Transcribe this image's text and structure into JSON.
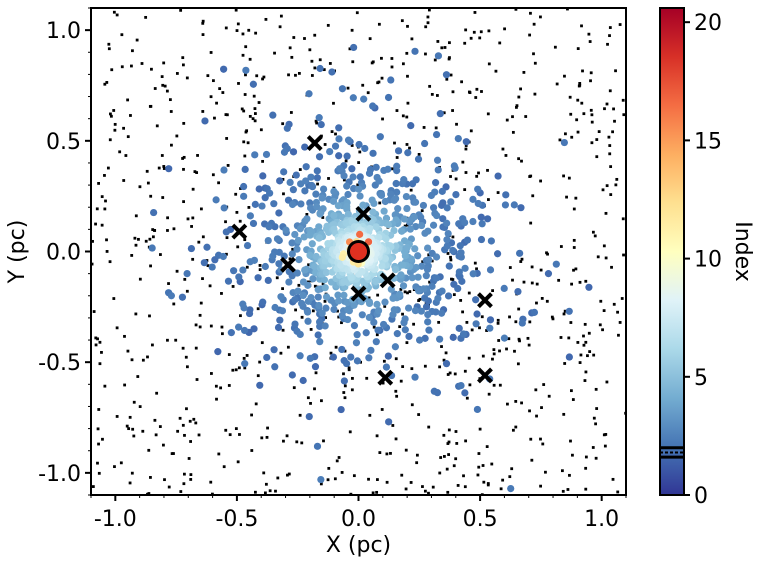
{
  "chart_data": {
    "type": "scatter",
    "xlabel": "X (pc)",
    "ylabel": "Y (pc)",
    "xlim": [
      -1.1,
      1.1
    ],
    "ylim": [
      -1.1,
      1.1
    ],
    "xticks": [
      -1.0,
      -0.5,
      0.0,
      0.5,
      1.0
    ],
    "xtick_labels": [
      "-1.0",
      "-0.5",
      "0.0",
      "0.5",
      "1.0"
    ],
    "yticks": [
      -1.0,
      -0.5,
      0.0,
      0.5,
      1.0
    ],
    "ytick_labels": [
      "-1.0",
      "-0.5",
      "0.0",
      "0.5",
      "1.0"
    ],
    "grid": false,
    "colorbar": {
      "label": "Index",
      "range": [
        0,
        20.6
      ],
      "ticks": [
        0,
        5,
        10,
        15,
        20
      ],
      "tick_labels": [
        "0",
        "5",
        "10",
        "15",
        "20"
      ],
      "colormap": "RdYlBu_r",
      "markers": [
        1.6,
        1.8,
        2.0
      ]
    },
    "field_points_note": "black dots, index < 1 (uniform background)",
    "crosses": [
      {
        "x": -0.18,
        "y": 0.49
      },
      {
        "x": 0.02,
        "y": 0.17
      },
      {
        "x": -0.49,
        "y": 0.09
      },
      {
        "x": -0.29,
        "y": -0.06
      },
      {
        "x": 0.0,
        "y": -0.19
      },
      {
        "x": 0.12,
        "y": -0.13
      },
      {
        "x": 0.52,
        "y": -0.22
      },
      {
        "x": 0.11,
        "y": -0.57
      },
      {
        "x": 0.52,
        "y": -0.56
      }
    ],
    "center_circle": {
      "x": 0.0,
      "y": 0.0,
      "color": "#e03020"
    }
  }
}
